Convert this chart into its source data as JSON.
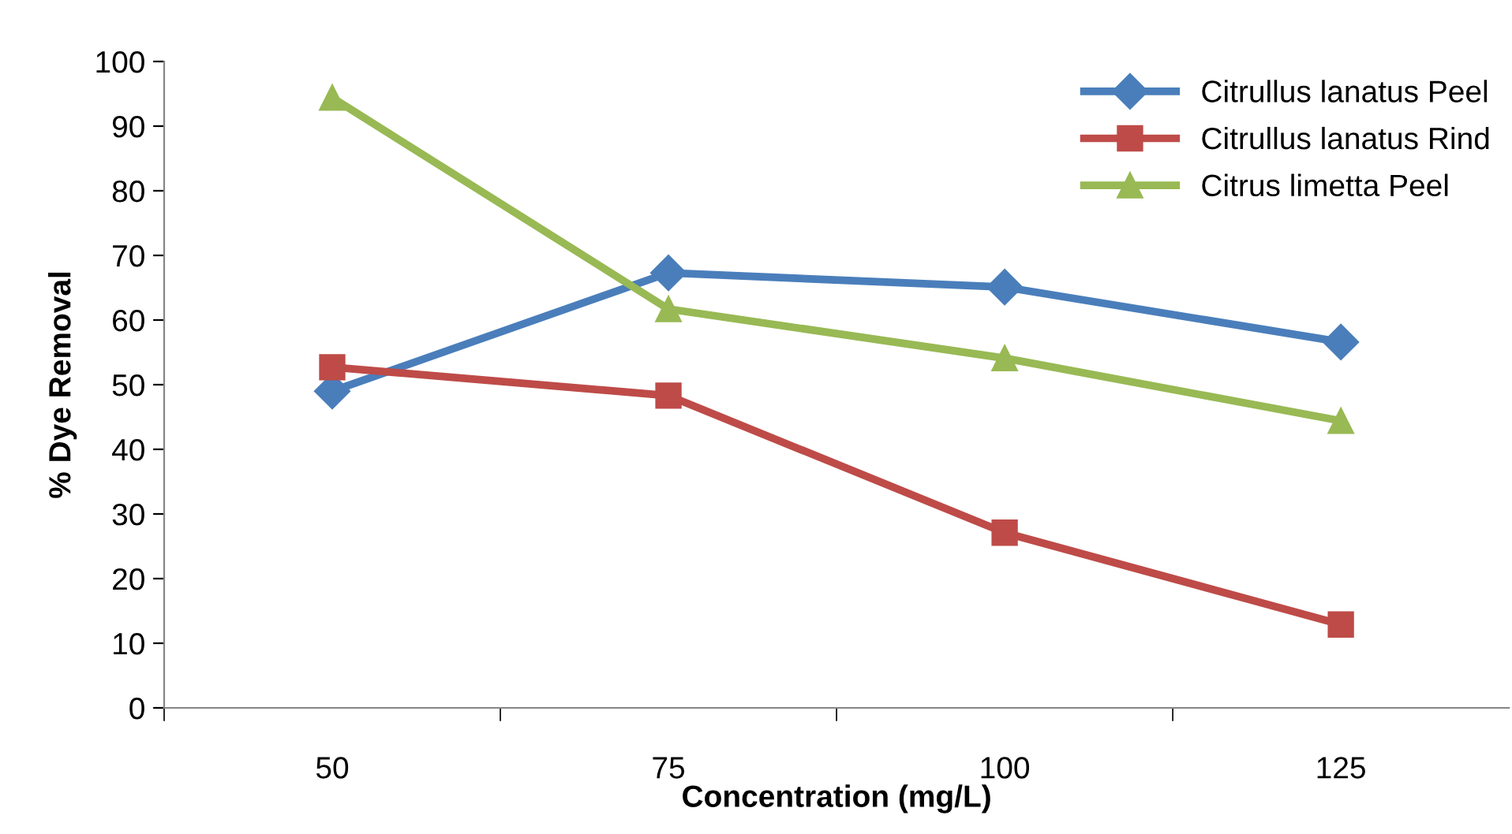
{
  "chart_data": {
    "type": "line",
    "xlabel": "Concentration (mg/L)",
    "ylabel": "% Dye Removal",
    "categories": [
      "50",
      "75",
      "100",
      "125"
    ],
    "series": [
      {
        "name": "Citrullus lanatus Peel",
        "color": "#4a7ebb",
        "marker": "diamond",
        "values": [
          49.0,
          67.3,
          65.1,
          56.6
        ]
      },
      {
        "name": "Citrullus lanatus Rind",
        "color": "#be4b48",
        "marker": "square",
        "values": [
          52.7,
          48.3,
          27.1,
          12.9
        ]
      },
      {
        "name": "Citrus limetta Peel",
        "color": "#98b954",
        "marker": "triangle",
        "values": [
          94.4,
          61.7,
          54.1,
          44.4
        ]
      }
    ],
    "ylim": [
      0,
      100
    ],
    "yticks": [
      0,
      10,
      20,
      30,
      40,
      50,
      60,
      70,
      80,
      90,
      100
    ],
    "grid": false,
    "legend": "top right",
    "line_style": "solid"
  }
}
